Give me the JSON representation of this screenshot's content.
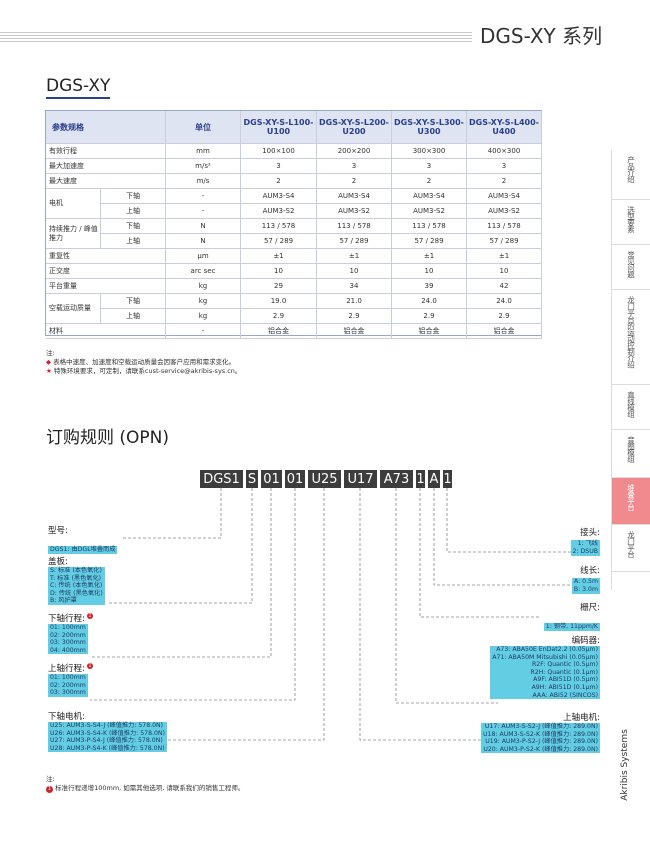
{
  "header": {
    "title": "DGS-XY 系列"
  },
  "section_title": "DGS-XY",
  "table": {
    "header": [
      "参数规格",
      "单位",
      "DGS-XY-S-L100-U100",
      "DGS-XY-S-L200-U200",
      "DGS-XY-S-L300-U300",
      "DGS-XY-S-L400-U400"
    ],
    "groups": [
      {
        "param": "有效行程",
        "unit": "mm",
        "values": [
          "100×100",
          "200×200",
          "300×300",
          "400×300"
        ]
      },
      {
        "param": "最大加速度",
        "unit": "m/s²",
        "values": [
          "3",
          "3",
          "3",
          "3"
        ]
      },
      {
        "param": "最大速度",
        "unit": "m/s",
        "values": [
          "2",
          "2",
          "2",
          "2"
        ]
      },
      {
        "param": "电机",
        "subrows": [
          {
            "sub": "下轴",
            "unit": "-",
            "values": [
              "AUM3-S4",
              "AUM3-S4",
              "AUM3-S4",
              "AUM3-S4"
            ]
          },
          {
            "sub": "上轴",
            "unit": "-",
            "values": [
              "AUM3-S2",
              "AUM3-S2",
              "AUM3-S2",
              "AUM3-S2"
            ]
          }
        ]
      },
      {
        "param": "持续推力 / 峰值推力",
        "subrows": [
          {
            "sub": "下轴",
            "unit": "N",
            "values": [
              "113 / 578",
              "113 / 578",
              "113 / 578",
              "113 / 578"
            ]
          },
          {
            "sub": "上轴",
            "unit": "N",
            "values": [
              "57 / 289",
              "57 / 289",
              "57 / 289",
              "57 / 289"
            ]
          }
        ]
      },
      {
        "param": "重复性",
        "unit": "μm",
        "values": [
          "±1",
          "±1",
          "±1",
          "±1"
        ]
      },
      {
        "param": "正交度",
        "unit": "arc sec",
        "values": [
          "10",
          "10",
          "10",
          "10"
        ]
      },
      {
        "param": "平台重量",
        "unit": "kg",
        "values": [
          "29",
          "34",
          "39",
          "42"
        ]
      },
      {
        "param": "空载运动质量",
        "subrows": [
          {
            "sub": "下轴",
            "unit": "kg",
            "values": [
              "19.0",
              "21.0",
              "24.0",
              "24.0"
            ]
          },
          {
            "sub": "上轴",
            "unit": "kg",
            "values": [
              "2.9",
              "2.9",
              "2.9",
              "2.9"
            ]
          }
        ]
      },
      {
        "param": "材料",
        "unit": "-",
        "values": [
          "铝合金",
          "铝合金",
          "铝合金",
          "铝合金"
        ]
      }
    ]
  },
  "notes": {
    "label": "注:",
    "items": [
      "表格中速度、加速度和空载运动质量会因客户应用和需求变化。",
      "特殊环境要求，可定制，请联系cust-service@akribis-sys.cn。"
    ]
  },
  "opn": {
    "title": "订购规则 (OPN)",
    "codes": [
      "DGS1",
      "S",
      "01",
      "01",
      "U25",
      "U17",
      "A73",
      "1",
      "A",
      "1"
    ],
    "left": [
      {
        "label": "型号:",
        "options": [
          "DGS1: 由DGL堆叠而成"
        ]
      },
      {
        "label": "盖板:",
        "options": [
          "S: 标准 (本色氧化)",
          "T: 标准 (黑色氧化)",
          "C: 传统 (本色氧化)",
          "D: 传统 (黑色氧化)",
          "B: 风护罩"
        ]
      },
      {
        "label": "下轴行程:",
        "note": "1",
        "options": [
          "01: 100mm",
          "02: 200mm",
          "03: 300mm",
          "04: 400mm"
        ]
      },
      {
        "label": "上轴行程:",
        "note": "1",
        "options": [
          "01: 100mm",
          "02: 200mm",
          "03: 300mm"
        ]
      },
      {
        "label": "下轴电机:",
        "options": [
          "U25: AUM3-S-S4-J (峰值推力: 578.0N)",
          "U26: AUM3-S-S4-K (峰值推力: 578.0N)",
          "U27: AUM3-P-S4-J (峰值推力: 578.0N)",
          "U28: AUM3-P-S4-K (峰值推力: 578.0N)"
        ]
      }
    ],
    "right": [
      {
        "label": "接头:",
        "options": [
          "1: 飞线",
          "2: DSUB"
        ]
      },
      {
        "label": "线长:",
        "options": [
          "A: 0.5m",
          "B: 3.0m"
        ]
      },
      {
        "label": "栅尺:",
        "options": [
          "1: 钢带, 11ppm/K"
        ]
      },
      {
        "label": "编码器:",
        "options": [
          "A73: ABA50E EnDat2.2 (0.05μm)",
          "A71: ABA50M Mitsubishi (0.05μm)",
          "R2F: Quantic (0.5μm)",
          "R2H: Quantic (0.1μm)",
          "A9F: ABI51D (0.5μm)",
          "A9H: ABI51D (0.1μm)",
          "AAA: ABI52 (SINCOS)"
        ]
      },
      {
        "label": "上轴电机:",
        "options": [
          "U17: AUM3-S-S2-J (峰值推力: 289.0N)",
          "U18: AUM3-S-S2-K (峰值推力: 289.0N)",
          "U19: AUM3-P-S2-J (峰值推力: 289.0N)",
          "U20: AUM3-P-S2-K (峰值推力: 289.0N)"
        ]
      }
    ],
    "footnote": {
      "label": "注:",
      "marker": "1",
      "text": "标准行程递增100mm, 如需其他选项, 请联系我们的销售工程师。"
    }
  },
  "nav": {
    "tabs": [
      "产品介绍",
      "选型要素",
      "常见问题",
      "龙门平台的运动控制介绍",
      "直线模组",
      "音圈模组",
      "堆叠平台",
      "龙门平台"
    ],
    "brand": "Akribis Systems"
  }
}
